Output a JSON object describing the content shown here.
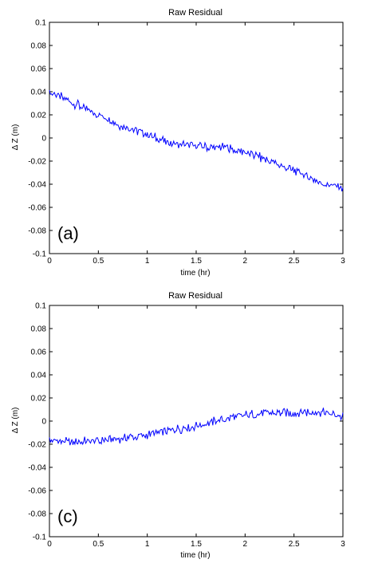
{
  "chart_data": [
    {
      "type": "line",
      "title": "Raw Residual",
      "xlabel": "time (hr)",
      "ylabel": "Δ Z (m)",
      "panel_label": "(a)",
      "xlim": [
        0,
        3
      ],
      "ylim": [
        -0.1,
        0.1
      ],
      "xticks": [
        "0",
        "0.5",
        "1",
        "1.5",
        "2",
        "2.5",
        "3"
      ],
      "yticks": [
        "0.1",
        "0.08",
        "0.06",
        "0.04",
        "0.02",
        "0",
        "-0.02",
        "-0.04",
        "-0.06",
        "-0.08",
        "-0.1"
      ],
      "grid": false,
      "line_color": "#0000ff",
      "series": [
        {
          "x": [
            0,
            0.25,
            0.5,
            0.75,
            1,
            1.25,
            1.5,
            1.75,
            2,
            2.25,
            2.5,
            2.75,
            3
          ],
          "y": [
            0.04,
            0.03,
            0.02,
            0.01,
            0.003,
            -0.005,
            -0.007,
            -0.008,
            -0.012,
            -0.02,
            -0.028,
            -0.038,
            -0.043
          ]
        }
      ]
    },
    {
      "type": "line",
      "title": "Raw Residual",
      "xlabel": "time (hr)",
      "ylabel": "Δ Z (m)",
      "panel_label": "(c)",
      "xlim": [
        0,
        3
      ],
      "ylim": [
        -0.1,
        0.1
      ],
      "xticks": [
        "0",
        "0.5",
        "1",
        "1.5",
        "2",
        "2.5",
        "3"
      ],
      "yticks": [
        "0.1",
        "0.08",
        "0.06",
        "0.04",
        "0.02",
        "0",
        "-0.02",
        "-0.04",
        "-0.06",
        "-0.08",
        "-0.1"
      ],
      "grid": false,
      "line_color": "#0000ff",
      "series": [
        {
          "x": [
            0,
            0.25,
            0.5,
            0.75,
            1,
            1.25,
            1.5,
            1.75,
            2,
            2.25,
            2.5,
            2.75,
            3
          ],
          "y": [
            -0.017,
            -0.018,
            -0.017,
            -0.015,
            -0.012,
            -0.008,
            -0.004,
            0.001,
            0.005,
            0.007,
            0.007,
            0.008,
            0.004
          ]
        }
      ]
    }
  ]
}
